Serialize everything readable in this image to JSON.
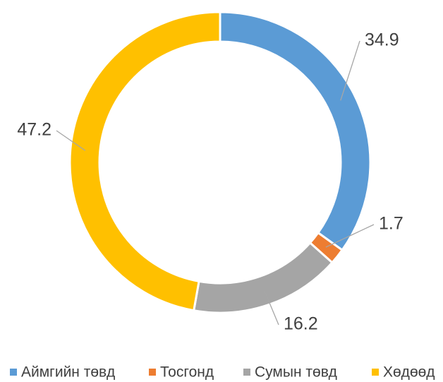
{
  "chart_data": {
    "type": "donut",
    "categories": [
      "Аймгийн төвд",
      "Тосгонд",
      "Сумын төвд",
      "Хөдөөд"
    ],
    "values": [
      34.9,
      1.7,
      16.2,
      47.2
    ],
    "colors": [
      "#5b9bd5",
      "#ed7d31",
      "#a5a5a5",
      "#ffc000"
    ],
    "legend": "bottom"
  }
}
